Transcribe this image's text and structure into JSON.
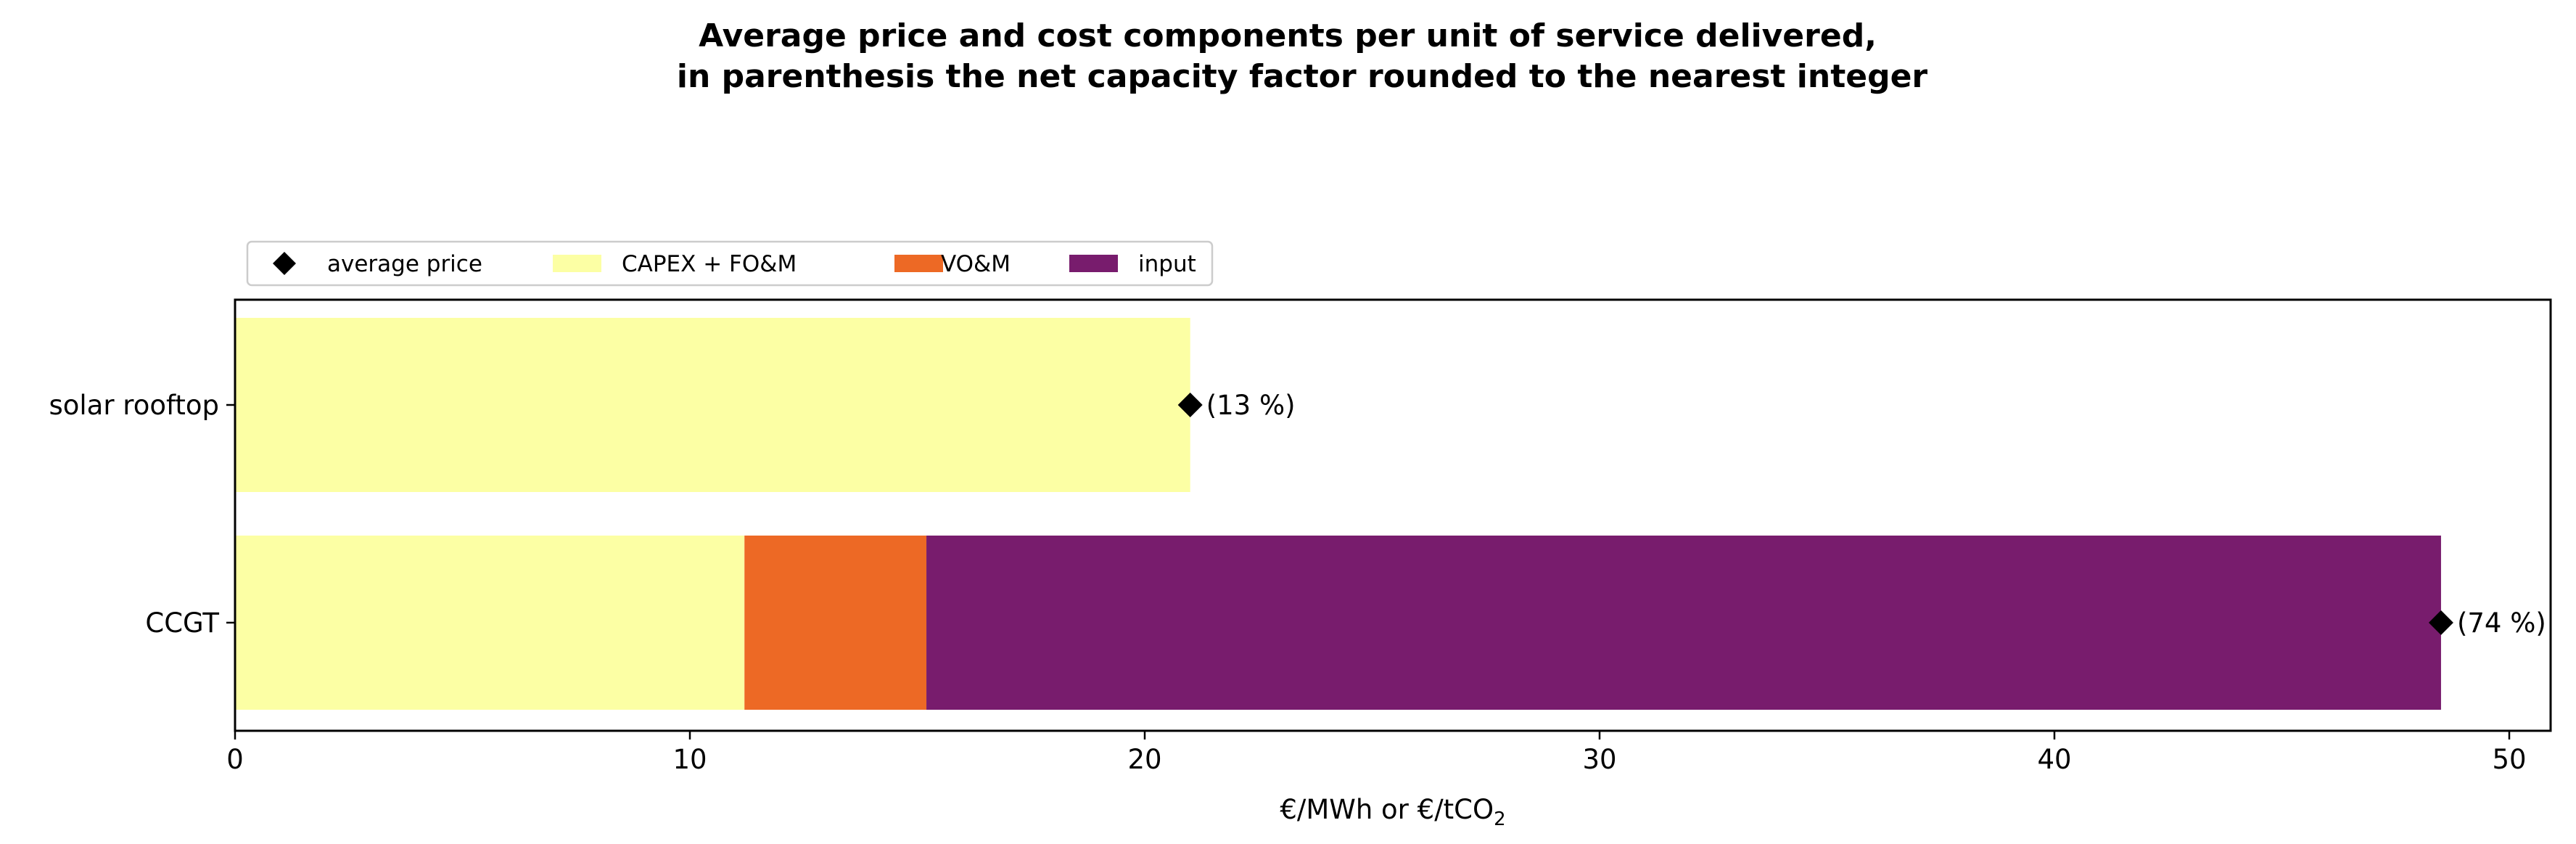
{
  "chart_data": {
    "type": "bar",
    "orientation": "horizontal",
    "stacked": true,
    "title_line1": "Average price and cost components per unit of service delivered,",
    "title_line2": "in parenthesis the net capacity factor rounded to the nearest integer",
    "xlabel_main": "€/MWh or €/tCO",
    "xlabel_sub": "2",
    "categories": [
      "solar rooftop",
      "CCGT"
    ],
    "series": [
      {
        "name": "CAPEX + FO&M",
        "color": "#fcffa4",
        "values": [
          21.0,
          11.2
        ]
      },
      {
        "name": "VO&M",
        "color": "#ed6925",
        "values": [
          0,
          4.0
        ]
      },
      {
        "name": "input",
        "color": "#781c6d",
        "values": [
          0,
          33.3
        ]
      }
    ],
    "average_price": {
      "name": "average price",
      "marker": "diamond",
      "color": "#000000",
      "values": [
        21.0,
        48.5
      ]
    },
    "annotations": [
      "(13 %)",
      "(74 %)"
    ],
    "xlim": [
      0,
      51
    ],
    "xticks": [
      0,
      10,
      20,
      30,
      40,
      50
    ],
    "xtick_labels": [
      "0",
      "10",
      "20",
      "30",
      "40",
      "50"
    ],
    "legend_position": "top-left, outside axes",
    "grid": false
  }
}
